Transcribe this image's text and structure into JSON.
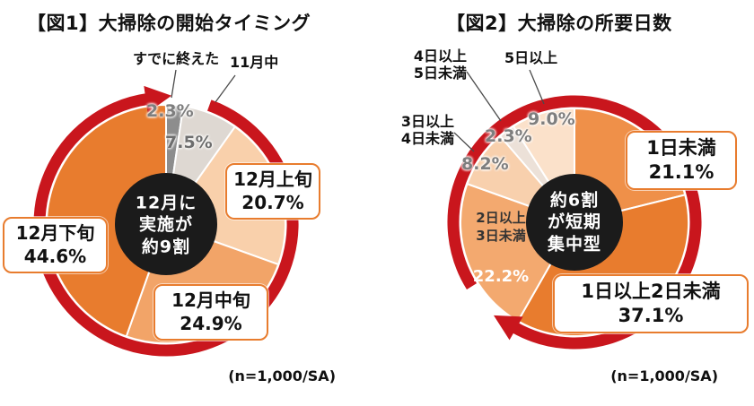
{
  "page": {
    "background": "#ffffff"
  },
  "colors": {
    "accent_orange": "#e87c2e",
    "arrow_red": "#c9161d",
    "center_dark": "#1b1b1b"
  },
  "chart_data": [
    {
      "type": "pie",
      "title": "【図1】大掃除の開始タイミング",
      "note": "(n=1,000/SA)",
      "center_text": "12月に\n実施が\n約9割",
      "center_color": "#1b1b1b",
      "arrow_color": "#c9161d",
      "direction": "clockwise",
      "start_angle_deg": 0,
      "unit": "%",
      "segments": [
        {
          "label": "すでに終えた",
          "value": 2.3,
          "pct": "2.3%",
          "color": "#8d8d8d"
        },
        {
          "label": "11月中",
          "value": 7.5,
          "pct": "7.5%",
          "color": "#ded8d2"
        },
        {
          "label": "12月上旬",
          "value": 20.7,
          "pct": "20.7%",
          "color": "#f9d0ab"
        },
        {
          "label": "12月中旬",
          "value": 24.9,
          "pct": "24.9%",
          "color": "#f2a468"
        },
        {
          "label": "12月下旬",
          "value": 44.6,
          "pct": "44.6%",
          "color": "#e87c2e"
        }
      ]
    },
    {
      "type": "pie",
      "title": "【図2】大掃除の所要日数",
      "note": "(n=1,000/SA)",
      "center_text": "約6割\nが短期\n集中型",
      "center_color": "#1b1b1b",
      "arrow_color": "#c9161d",
      "direction": "clockwise",
      "start_angle_deg": 0,
      "unit": "%",
      "segments": [
        {
          "label": "1日未満",
          "value": 21.1,
          "pct": "21.1%",
          "color": "#ef9049"
        },
        {
          "label": "1日以上2日未満",
          "value": 37.1,
          "pct": "37.1%",
          "color": "#e87c2e"
        },
        {
          "label": "2日以上3日未満",
          "label_display": "2日以上\n3日未満",
          "value": 22.2,
          "pct": "22.2%",
          "color": "#f3a96f"
        },
        {
          "label": "3日以上4日未満",
          "label_display": "3日以上\n4日未満",
          "value": 8.2,
          "pct": "8.2%",
          "color": "#f8d0ad"
        },
        {
          "label": "4日以上5日未満",
          "label_display": "4日以上\n5日未満",
          "value": 2.3,
          "pct": "2.3%",
          "color": "#ece1d8"
        },
        {
          "label": "5日以上",
          "value": 9.0,
          "pct": "9.0%",
          "color": "#fbe1ca"
        }
      ]
    }
  ]
}
